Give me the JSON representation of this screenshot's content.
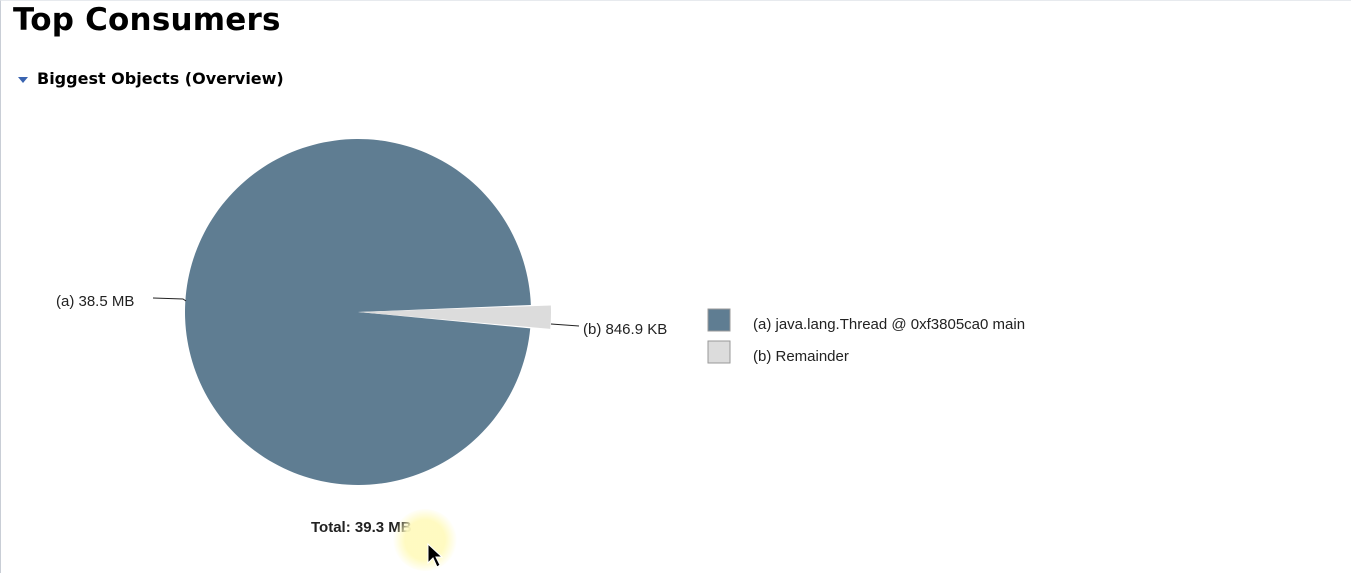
{
  "page": {
    "title": "Top Consumers"
  },
  "section": {
    "title": "Biggest Objects (Overview)",
    "expand_icon": "triangle-down-icon"
  },
  "chart_data": {
    "type": "pie",
    "unit": "MB",
    "slices": [
      {
        "key": "(a)",
        "value": 38.5,
        "label": "38.5 MB",
        "name": "java.lang.Thread @ 0xf3805ca0  main",
        "color": "#5f7d92"
      },
      {
        "key": "(b)",
        "value": 0.8469,
        "label": "846.9 KB",
        "name": "Remainder",
        "color": "#dcdcdc"
      }
    ],
    "total_label": "Total: 39.3 MB",
    "legend_position": "right"
  },
  "cursor": {
    "icon": "mouse-pointer-icon"
  }
}
